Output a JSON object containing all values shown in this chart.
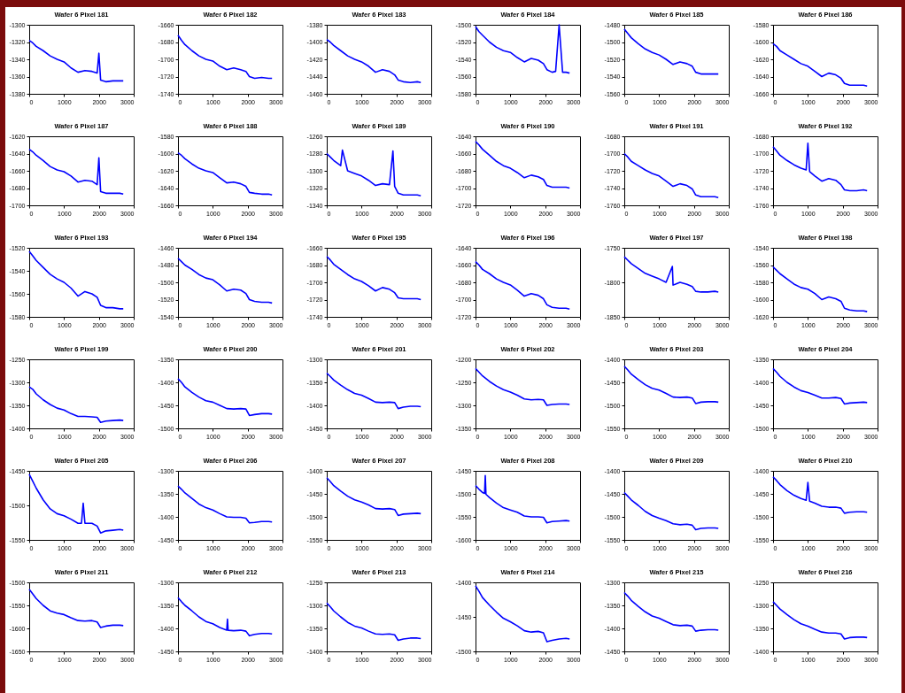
{
  "chart_data": [
    {
      "type": "line",
      "title": "Wafer 6 Pixel 181",
      "x": [
        0,
        100,
        200,
        400,
        600,
        800,
        1000,
        1200,
        1400,
        1600,
        1800,
        1950,
        2000,
        2050,
        2200,
        2400,
        2600,
        2700
      ],
      "series": [
        {
          "color": "#0000ff",
          "values": [
            -1318,
            -1321,
            -1325,
            -1330,
            -1336,
            -1340,
            -1343,
            -1350,
            -1355,
            -1353,
            -1354,
            -1356,
            -1333,
            -1364,
            -1366,
            -1365,
            -1365,
            -1365
          ]
        }
      ],
      "xlim": [
        0,
        3000
      ],
      "xticks": [
        0,
        1000,
        2000,
        3000
      ],
      "ylim": [
        -1380,
        -1300
      ],
      "yticks": [
        -1380,
        -1360,
        -1340,
        -1320,
        -1300
      ]
    },
    {
      "type": "line",
      "title": "Wafer 6 Pixel 182",
      "x": [
        0,
        100,
        200,
        400,
        600,
        800,
        1000,
        1200,
        1400,
        1600,
        1800,
        1950,
        2050,
        2200,
        2400,
        2600,
        2700
      ],
      "series": [
        {
          "color": "#0000ff",
          "values": [
            -1672,
            -1678,
            -1683,
            -1690,
            -1696,
            -1700,
            -1702,
            -1708,
            -1712,
            -1710,
            -1712,
            -1714,
            -1720,
            -1722,
            -1721,
            -1722,
            -1722
          ]
        }
      ],
      "xlim": [
        0,
        3000
      ],
      "xticks": [
        0,
        1000,
        2000,
        3000
      ],
      "ylim": [
        -1740,
        -1660
      ],
      "yticks": [
        -1740,
        -1720,
        -1700,
        -1680,
        -1660
      ]
    },
    {
      "type": "line",
      "title": "Wafer 6 Pixel 183",
      "x": [
        0,
        100,
        200,
        400,
        600,
        800,
        1000,
        1200,
        1400,
        1600,
        1800,
        1950,
        2050,
        2200,
        2400,
        2600,
        2700
      ],
      "series": [
        {
          "color": "#0000ff",
          "values": [
            -1397,
            -1400,
            -1404,
            -1410,
            -1416,
            -1420,
            -1423,
            -1428,
            -1435,
            -1432,
            -1434,
            -1438,
            -1444,
            -1446,
            -1447,
            -1446,
            -1447
          ]
        }
      ],
      "xlim": [
        0,
        3000
      ],
      "xticks": [
        0,
        1000,
        2000,
        3000
      ],
      "ylim": [
        -1460,
        -1380
      ],
      "yticks": [
        -1460,
        -1440,
        -1420,
        -1400,
        -1380
      ]
    },
    {
      "type": "line",
      "title": "Wafer 6 Pixel 184",
      "x": [
        0,
        100,
        200,
        400,
        600,
        800,
        1000,
        1200,
        1400,
        1600,
        1800,
        1950,
        2050,
        2200,
        2300,
        2400,
        2500,
        2600,
        2700
      ],
      "series": [
        {
          "color": "#0000ff",
          "values": [
            -1502,
            -1508,
            -1512,
            -1520,
            -1526,
            -1530,
            -1532,
            -1538,
            -1543,
            -1539,
            -1541,
            -1545,
            -1552,
            -1555,
            -1554,
            -1500,
            -1555,
            -1555,
            -1556
          ]
        }
      ],
      "xlim": [
        0,
        3000
      ],
      "xticks": [
        0,
        1000,
        2000,
        3000
      ],
      "ylim": [
        -1580,
        -1500
      ],
      "yticks": [
        -1580,
        -1560,
        -1540,
        -1520,
        -1500
      ]
    },
    {
      "type": "line",
      "title": "Wafer 6 Pixel 185",
      "x": [
        0,
        100,
        200,
        400,
        600,
        800,
        1000,
        1200,
        1400,
        1600,
        1800,
        1950,
        2050,
        2200,
        2400,
        2600,
        2700
      ],
      "series": [
        {
          "color": "#0000ff",
          "values": [
            -1485,
            -1490,
            -1495,
            -1502,
            -1508,
            -1512,
            -1515,
            -1520,
            -1526,
            -1523,
            -1525,
            -1528,
            -1535,
            -1537,
            -1537,
            -1537,
            -1537
          ]
        }
      ],
      "xlim": [
        0,
        3000
      ],
      "xticks": [
        0,
        1000,
        2000,
        3000
      ],
      "ylim": [
        -1560,
        -1480
      ],
      "yticks": [
        -1560,
        -1540,
        -1520,
        -1500,
        -1480
      ]
    },
    {
      "type": "line",
      "title": "Wafer 6 Pixel 186",
      "x": [
        0,
        100,
        200,
        400,
        600,
        800,
        1000,
        1200,
        1400,
        1600,
        1800,
        1950,
        2050,
        2200,
        2400,
        2600,
        2700
      ],
      "series": [
        {
          "color": "#0000ff",
          "values": [
            -1602,
            -1605,
            -1610,
            -1615,
            -1620,
            -1625,
            -1628,
            -1634,
            -1640,
            -1636,
            -1638,
            -1642,
            -1648,
            -1650,
            -1650,
            -1650,
            -1651
          ]
        }
      ],
      "xlim": [
        0,
        3000
      ],
      "xticks": [
        0,
        1000,
        2000,
        3000
      ],
      "ylim": [
        -1660,
        -1580
      ],
      "yticks": [
        -1660,
        -1640,
        -1620,
        -1600,
        -1580
      ]
    },
    {
      "type": "line",
      "title": "Wafer 6 Pixel 187",
      "x": [
        0,
        100,
        200,
        400,
        600,
        800,
        1000,
        1200,
        1400,
        1600,
        1800,
        1950,
        2000,
        2050,
        2200,
        2400,
        2600,
        2700
      ],
      "series": [
        {
          "color": "#0000ff",
          "values": [
            -1635,
            -1638,
            -1642,
            -1648,
            -1655,
            -1659,
            -1661,
            -1666,
            -1673,
            -1671,
            -1672,
            -1676,
            -1645,
            -1684,
            -1686,
            -1686,
            -1686,
            -1687
          ]
        }
      ],
      "xlim": [
        0,
        3000
      ],
      "xticks": [
        0,
        1000,
        2000,
        3000
      ],
      "ylim": [
        -1700,
        -1620
      ],
      "yticks": [
        -1700,
        -1680,
        -1660,
        -1640,
        -1620
      ]
    },
    {
      "type": "line",
      "title": "Wafer 6 Pixel 188",
      "x": [
        0,
        100,
        200,
        400,
        600,
        800,
        1000,
        1200,
        1400,
        1600,
        1800,
        1950,
        2050,
        2200,
        2400,
        2600,
        2700
      ],
      "series": [
        {
          "color": "#0000ff",
          "values": [
            -1599,
            -1602,
            -1606,
            -1612,
            -1617,
            -1620,
            -1622,
            -1628,
            -1634,
            -1633,
            -1635,
            -1638,
            -1645,
            -1646,
            -1647,
            -1647,
            -1648
          ]
        }
      ],
      "xlim": [
        0,
        3000
      ],
      "xticks": [
        0,
        1000,
        2000,
        3000
      ],
      "ylim": [
        -1660,
        -1580
      ],
      "yticks": [
        -1660,
        -1640,
        -1620,
        -1600,
        -1580
      ]
    },
    {
      "type": "line",
      "title": "Wafer 6 Pixel 189",
      "x": [
        0,
        100,
        200,
        400,
        450,
        600,
        800,
        1000,
        1200,
        1400,
        1600,
        1800,
        1900,
        1950,
        2050,
        2200,
        2400,
        2600,
        2700
      ],
      "series": [
        {
          "color": "#0000ff",
          "values": [
            -1280,
            -1284,
            -1288,
            -1294,
            -1276,
            -1300,
            -1303,
            -1306,
            -1311,
            -1317,
            -1315,
            -1316,
            -1277,
            -1318,
            -1326,
            -1328,
            -1328,
            -1328,
            -1329
          ]
        }
      ],
      "xlim": [
        0,
        3000
      ],
      "xticks": [
        0,
        1000,
        2000,
        3000
      ],
      "ylim": [
        -1340,
        -1260
      ],
      "yticks": [
        -1340,
        -1320,
        -1300,
        -1280,
        -1260
      ]
    },
    {
      "type": "line",
      "title": "Wafer 6 Pixel 190",
      "x": [
        0,
        100,
        200,
        400,
        600,
        800,
        1000,
        1200,
        1400,
        1600,
        1800,
        1950,
        2050,
        2200,
        2400,
        2600,
        2700
      ],
      "series": [
        {
          "color": "#0000ff",
          "values": [
            -1646,
            -1650,
            -1655,
            -1662,
            -1669,
            -1674,
            -1677,
            -1682,
            -1688,
            -1685,
            -1687,
            -1690,
            -1697,
            -1699,
            -1699,
            -1699,
            -1700
          ]
        }
      ],
      "xlim": [
        0,
        3000
      ],
      "xticks": [
        0,
        1000,
        2000,
        3000
      ],
      "ylim": [
        -1720,
        -1640
      ],
      "yticks": [
        -1720,
        -1700,
        -1680,
        -1660,
        -1640
      ]
    },
    {
      "type": "line",
      "title": "Wafer 6 Pixel 191",
      "x": [
        0,
        100,
        200,
        400,
        600,
        800,
        1000,
        1200,
        1400,
        1600,
        1800,
        1950,
        2050,
        2200,
        2400,
        2600,
        2700
      ],
      "series": [
        {
          "color": "#0000ff",
          "values": [
            -1700,
            -1704,
            -1709,
            -1714,
            -1719,
            -1723,
            -1726,
            -1732,
            -1738,
            -1735,
            -1737,
            -1741,
            -1748,
            -1750,
            -1750,
            -1750,
            -1751
          ]
        }
      ],
      "xlim": [
        0,
        3000
      ],
      "xticks": [
        0,
        1000,
        2000,
        3000
      ],
      "ylim": [
        -1760,
        -1680
      ],
      "yticks": [
        -1760,
        -1740,
        -1720,
        -1700,
        -1680
      ]
    },
    {
      "type": "line",
      "title": "Wafer 6 Pixel 192",
      "x": [
        0,
        100,
        200,
        400,
        600,
        800,
        950,
        1000,
        1050,
        1200,
        1400,
        1600,
        1800,
        1950,
        2050,
        2200,
        2400,
        2600,
        2700
      ],
      "series": [
        {
          "color": "#0000ff",
          "values": [
            -1692,
            -1697,
            -1702,
            -1708,
            -1713,
            -1717,
            -1719,
            -1688,
            -1721,
            -1726,
            -1732,
            -1729,
            -1731,
            -1736,
            -1742,
            -1743,
            -1743,
            -1742,
            -1743
          ]
        }
      ],
      "xlim": [
        0,
        3000
      ],
      "xticks": [
        0,
        1000,
        2000,
        3000
      ],
      "ylim": [
        -1760,
        -1680
      ],
      "yticks": [
        -1760,
        -1740,
        -1720,
        -1700,
        -1680
      ]
    },
    {
      "type": "line",
      "title": "Wafer 6 Pixel 193",
      "x": [
        0,
        100,
        200,
        400,
        600,
        800,
        1000,
        1200,
        1400,
        1600,
        1800,
        1950,
        2050,
        2200,
        2400,
        2600,
        2700
      ],
      "series": [
        {
          "color": "#0000ff",
          "values": [
            -1523,
            -1527,
            -1531,
            -1537,
            -1543,
            -1547,
            -1550,
            -1555,
            -1562,
            -1558,
            -1560,
            -1563,
            -1570,
            -1572,
            -1572,
            -1573,
            -1573
          ]
        }
      ],
      "xlim": [
        0,
        3000
      ],
      "xticks": [
        0,
        1000,
        2000,
        3000
      ],
      "ylim": [
        -1580,
        -1520
      ],
      "yticks": [
        -1580,
        -1560,
        -1540,
        -1520
      ]
    },
    {
      "type": "line",
      "title": "Wafer 6 Pixel 194",
      "x": [
        0,
        100,
        200,
        400,
        600,
        800,
        1000,
        1200,
        1400,
        1600,
        1800,
        1950,
        2050,
        2200,
        2400,
        2600,
        2700
      ],
      "series": [
        {
          "color": "#0000ff",
          "values": [
            -1472,
            -1476,
            -1480,
            -1485,
            -1491,
            -1495,
            -1497,
            -1503,
            -1510,
            -1508,
            -1509,
            -1513,
            -1520,
            -1522,
            -1523,
            -1523,
            -1524
          ]
        }
      ],
      "xlim": [
        0,
        3000
      ],
      "xticks": [
        0,
        1000,
        2000,
        3000
      ],
      "ylim": [
        -1540,
        -1460
      ],
      "yticks": [
        -1540,
        -1520,
        -1500,
        -1480,
        -1460
      ]
    },
    {
      "type": "line",
      "title": "Wafer 6 Pixel 195",
      "x": [
        0,
        100,
        200,
        400,
        600,
        800,
        1000,
        1200,
        1400,
        1600,
        1800,
        1950,
        2050,
        2200,
        2400,
        2600,
        2700
      ],
      "series": [
        {
          "color": "#0000ff",
          "values": [
            -1670,
            -1674,
            -1679,
            -1685,
            -1691,
            -1696,
            -1699,
            -1704,
            -1710,
            -1706,
            -1708,
            -1712,
            -1718,
            -1719,
            -1719,
            -1719,
            -1720
          ]
        }
      ],
      "xlim": [
        0,
        3000
      ],
      "xticks": [
        0,
        1000,
        2000,
        3000
      ],
      "ylim": [
        -1740,
        -1660
      ],
      "yticks": [
        -1740,
        -1720,
        -1700,
        -1680,
        -1660
      ]
    },
    {
      "type": "line",
      "title": "Wafer 6 Pixel 196",
      "x": [
        0,
        100,
        200,
        400,
        600,
        800,
        1000,
        1200,
        1400,
        1600,
        1800,
        1950,
        2050,
        2200,
        2400,
        2600,
        2700
      ],
      "series": [
        {
          "color": "#0000ff",
          "values": [
            -1656,
            -1660,
            -1665,
            -1670,
            -1676,
            -1680,
            -1683,
            -1689,
            -1696,
            -1693,
            -1695,
            -1699,
            -1706,
            -1709,
            -1710,
            -1710,
            -1711
          ]
        }
      ],
      "xlim": [
        0,
        3000
      ],
      "xticks": [
        0,
        1000,
        2000,
        3000
      ],
      "ylim": [
        -1720,
        -1640
      ],
      "yticks": [
        -1720,
        -1700,
        -1680,
        -1660,
        -1640
      ]
    },
    {
      "type": "line",
      "title": "Wafer 6 Pixel 197",
      "x": [
        0,
        100,
        200,
        400,
        600,
        800,
        1000,
        1200,
        1380,
        1400,
        1600,
        1800,
        1950,
        2050,
        2200,
        2400,
        2600,
        2700
      ],
      "series": [
        {
          "color": "#0000ff",
          "values": [
            -1763,
            -1768,
            -1773,
            -1780,
            -1787,
            -1791,
            -1795,
            -1800,
            -1777,
            -1804,
            -1800,
            -1803,
            -1806,
            -1813,
            -1814,
            -1814,
            -1813,
            -1814
          ]
        }
      ],
      "xlim": [
        0,
        3000
      ],
      "xticks": [
        0,
        1000,
        2000,
        3000
      ],
      "ylim": [
        -1850,
        -1750
      ],
      "yticks": [
        -1850,
        -1800,
        -1750
      ]
    },
    {
      "type": "line",
      "title": "Wafer 6 Pixel 198",
      "x": [
        0,
        100,
        200,
        400,
        600,
        800,
        1000,
        1200,
        1400,
        1600,
        1800,
        1950,
        2050,
        2200,
        2400,
        2600,
        2700
      ],
      "series": [
        {
          "color": "#0000ff",
          "values": [
            -1562,
            -1566,
            -1570,
            -1576,
            -1582,
            -1586,
            -1588,
            -1593,
            -1600,
            -1597,
            -1599,
            -1602,
            -1610,
            -1612,
            -1613,
            -1613,
            -1614
          ]
        }
      ],
      "xlim": [
        0,
        3000
      ],
      "xticks": [
        0,
        1000,
        2000,
        3000
      ],
      "ylim": [
        -1620,
        -1540
      ],
      "yticks": [
        -1620,
        -1600,
        -1580,
        -1560,
        -1540
      ]
    },
    {
      "type": "line",
      "title": "Wafer 6 Pixel 199",
      "x": [
        0,
        100,
        200,
        400,
        600,
        800,
        1000,
        1200,
        1400,
        1600,
        1800,
        1950,
        2050,
        2200,
        2400,
        2600,
        2700
      ],
      "series": [
        {
          "color": "#0000ff",
          "values": [
            -1310,
            -1315,
            -1325,
            -1338,
            -1348,
            -1356,
            -1360,
            -1368,
            -1374,
            -1374,
            -1375,
            -1376,
            -1387,
            -1384,
            -1383,
            -1382,
            -1383
          ]
        }
      ],
      "xlim": [
        0,
        3000
      ],
      "xticks": [
        0,
        1000,
        2000,
        3000
      ],
      "ylim": [
        -1400,
        -1250
      ],
      "yticks": [
        -1400,
        -1350,
        -1300,
        -1250
      ]
    },
    {
      "type": "line",
      "title": "Wafer 6 Pixel 200",
      "x": [
        0,
        100,
        200,
        400,
        600,
        800,
        1000,
        1200,
        1400,
        1600,
        1800,
        1950,
        2050,
        2200,
        2400,
        2600,
        2700
      ],
      "series": [
        {
          "color": "#0000ff",
          "values": [
            -1392,
            -1400,
            -1410,
            -1422,
            -1432,
            -1440,
            -1443,
            -1450,
            -1457,
            -1458,
            -1457,
            -1458,
            -1472,
            -1470,
            -1468,
            -1468,
            -1469
          ]
        }
      ],
      "xlim": [
        0,
        3000
      ],
      "xticks": [
        0,
        1000,
        2000,
        3000
      ],
      "ylim": [
        -1500,
        -1350
      ],
      "yticks": [
        -1500,
        -1450,
        -1400,
        -1350
      ]
    },
    {
      "type": "line",
      "title": "Wafer 6 Pixel 201",
      "x": [
        0,
        100,
        200,
        400,
        600,
        800,
        1000,
        1200,
        1400,
        1600,
        1800,
        1950,
        2050,
        2200,
        2400,
        2600,
        2700
      ],
      "series": [
        {
          "color": "#0000ff",
          "values": [
            -1330,
            -1337,
            -1345,
            -1356,
            -1366,
            -1374,
            -1378,
            -1385,
            -1393,
            -1394,
            -1393,
            -1394,
            -1407,
            -1404,
            -1402,
            -1402,
            -1403
          ]
        }
      ],
      "xlim": [
        0,
        3000
      ],
      "xticks": [
        0,
        1000,
        2000,
        3000
      ],
      "ylim": [
        -1450,
        -1300
      ],
      "yticks": [
        -1450,
        -1400,
        -1350,
        -1300
      ]
    },
    {
      "type": "line",
      "title": "Wafer 6 Pixel 202",
      "x": [
        0,
        100,
        200,
        400,
        600,
        800,
        1000,
        1200,
        1400,
        1600,
        1800,
        1950,
        2050,
        2200,
        2400,
        2600,
        2700
      ],
      "series": [
        {
          "color": "#0000ff",
          "values": [
            -1220,
            -1228,
            -1236,
            -1248,
            -1258,
            -1266,
            -1271,
            -1278,
            -1286,
            -1288,
            -1287,
            -1288,
            -1300,
            -1298,
            -1297,
            -1297,
            -1298
          ]
        }
      ],
      "xlim": [
        0,
        3000
      ],
      "xticks": [
        0,
        1000,
        2000,
        3000
      ],
      "ylim": [
        -1350,
        -1200
      ],
      "yticks": [
        -1350,
        -1300,
        -1250,
        -1200
      ]
    },
    {
      "type": "line",
      "title": "Wafer 6 Pixel 203",
      "x": [
        0,
        100,
        200,
        400,
        600,
        800,
        1000,
        1200,
        1400,
        1600,
        1800,
        1950,
        2050,
        2200,
        2400,
        2600,
        2700
      ],
      "series": [
        {
          "color": "#0000ff",
          "values": [
            -1415,
            -1423,
            -1432,
            -1444,
            -1455,
            -1463,
            -1467,
            -1474,
            -1482,
            -1483,
            -1482,
            -1484,
            -1496,
            -1493,
            -1492,
            -1492,
            -1493
          ]
        }
      ],
      "xlim": [
        0,
        3000
      ],
      "xticks": [
        0,
        1000,
        2000,
        3000
      ],
      "ylim": [
        -1550,
        -1400
      ],
      "yticks": [
        -1550,
        -1500,
        -1450,
        -1400
      ]
    },
    {
      "type": "line",
      "title": "Wafer 6 Pixel 204",
      "x": [
        0,
        100,
        200,
        400,
        600,
        800,
        1000,
        1200,
        1400,
        1600,
        1800,
        1950,
        2050,
        2200,
        2400,
        2600,
        2700
      ],
      "series": [
        {
          "color": "#0000ff",
          "values": [
            -1370,
            -1378,
            -1387,
            -1400,
            -1410,
            -1418,
            -1422,
            -1428,
            -1434,
            -1434,
            -1433,
            -1435,
            -1447,
            -1445,
            -1444,
            -1443,
            -1444
          ]
        }
      ],
      "xlim": [
        0,
        3000
      ],
      "xticks": [
        0,
        1000,
        2000,
        3000
      ],
      "ylim": [
        -1500,
        -1350
      ],
      "yticks": [
        -1500,
        -1450,
        -1400,
        -1350
      ]
    },
    {
      "type": "line",
      "title": "Wafer 6 Pixel 205",
      "x": [
        0,
        100,
        200,
        400,
        600,
        800,
        1000,
        1200,
        1400,
        1500,
        1550,
        1600,
        1800,
        1950,
        2050,
        2200,
        2400,
        2600,
        2700
      ],
      "series": [
        {
          "color": "#0000ff",
          "values": [
            -1455,
            -1465,
            -1475,
            -1492,
            -1505,
            -1512,
            -1515,
            -1520,
            -1526,
            -1526,
            -1497,
            -1526,
            -1526,
            -1530,
            -1540,
            -1537,
            -1536,
            -1535,
            -1536
          ]
        }
      ],
      "xlim": [
        0,
        3000
      ],
      "xticks": [
        0,
        1000,
        2000,
        3000
      ],
      "ylim": [
        -1550,
        -1450
      ],
      "yticks": [
        -1550,
        -1500,
        -1450
      ]
    },
    {
      "type": "line",
      "title": "Wafer 6 Pixel 206",
      "x": [
        0,
        100,
        200,
        400,
        600,
        800,
        1000,
        1200,
        1400,
        1600,
        1800,
        1950,
        2050,
        2200,
        2400,
        2600,
        2700
      ],
      "series": [
        {
          "color": "#0000ff",
          "values": [
            -1333,
            -1340,
            -1348,
            -1360,
            -1372,
            -1380,
            -1385,
            -1393,
            -1400,
            -1401,
            -1401,
            -1403,
            -1413,
            -1412,
            -1410,
            -1410,
            -1411
          ]
        }
      ],
      "xlim": [
        0,
        3000
      ],
      "xticks": [
        0,
        1000,
        2000,
        3000
      ],
      "ylim": [
        -1450,
        -1300
      ],
      "yticks": [
        -1450,
        -1400,
        -1350,
        -1300
      ]
    },
    {
      "type": "line",
      "title": "Wafer 6 Pixel 207",
      "x": [
        0,
        100,
        200,
        400,
        600,
        800,
        1000,
        1200,
        1400,
        1600,
        1800,
        1950,
        2050,
        2200,
        2400,
        2600,
        2700
      ],
      "series": [
        {
          "color": "#0000ff",
          "values": [
            -1415,
            -1423,
            -1432,
            -1444,
            -1455,
            -1463,
            -1468,
            -1474,
            -1482,
            -1483,
            -1482,
            -1484,
            -1497,
            -1494,
            -1493,
            -1492,
            -1493
          ]
        }
      ],
      "xlim": [
        0,
        3000
      ],
      "xticks": [
        0,
        1000,
        2000,
        3000
      ],
      "ylim": [
        -1550,
        -1400
      ],
      "yticks": [
        -1550,
        -1500,
        -1450,
        -1400
      ]
    },
    {
      "type": "line",
      "title": "Wafer 6 Pixel 208",
      "x": [
        0,
        100,
        200,
        260,
        280,
        300,
        400,
        600,
        800,
        1000,
        1200,
        1400,
        1600,
        1800,
        1950,
        2050,
        2200,
        2400,
        2600,
        2700
      ],
      "series": [
        {
          "color": "#0000ff",
          "values": [
            -1482,
            -1490,
            -1497,
            -1499,
            -1460,
            -1501,
            -1508,
            -1520,
            -1530,
            -1535,
            -1540,
            -1548,
            -1550,
            -1550,
            -1551,
            -1563,
            -1560,
            -1559,
            -1558,
            -1559
          ]
        }
      ],
      "xlim": [
        0,
        3000
      ],
      "xticks": [
        0,
        1000,
        2000,
        3000
      ],
      "ylim": [
        -1600,
        -1450
      ],
      "yticks": [
        -1600,
        -1550,
        -1500,
        -1450
      ]
    },
    {
      "type": "line",
      "title": "Wafer 6 Pixel 209",
      "x": [
        0,
        100,
        200,
        400,
        600,
        800,
        1000,
        1200,
        1400,
        1600,
        1800,
        1950,
        2050,
        2200,
        2400,
        2600,
        2700
      ],
      "series": [
        {
          "color": "#0000ff",
          "values": [
            -1447,
            -1455,
            -1463,
            -1475,
            -1488,
            -1497,
            -1503,
            -1508,
            -1515,
            -1517,
            -1516,
            -1518,
            -1528,
            -1525,
            -1524,
            -1524,
            -1525
          ]
        }
      ],
      "xlim": [
        0,
        3000
      ],
      "xticks": [
        0,
        1000,
        2000,
        3000
      ],
      "ylim": [
        -1550,
        -1400
      ],
      "yticks": [
        -1550,
        -1500,
        -1450,
        -1400
      ]
    },
    {
      "type": "line",
      "title": "Wafer 6 Pixel 210",
      "x": [
        0,
        100,
        200,
        400,
        600,
        800,
        950,
        1000,
        1050,
        1200,
        1400,
        1600,
        1800,
        1950,
        2050,
        2200,
        2400,
        2600,
        2700
      ],
      "series": [
        {
          "color": "#0000ff",
          "values": [
            -1413,
            -1421,
            -1430,
            -1443,
            -1453,
            -1460,
            -1464,
            -1425,
            -1466,
            -1470,
            -1477,
            -1479,
            -1479,
            -1481,
            -1492,
            -1490,
            -1489,
            -1489,
            -1490
          ]
        }
      ],
      "xlim": [
        0,
        3000
      ],
      "xticks": [
        0,
        1000,
        2000,
        3000
      ],
      "ylim": [
        -1550,
        -1400
      ],
      "yticks": [
        -1550,
        -1500,
        -1450,
        -1400
      ]
    },
    {
      "type": "line",
      "title": "Wafer 6 Pixel 211",
      "x": [
        0,
        100,
        200,
        400,
        600,
        800,
        1000,
        1200,
        1400,
        1600,
        1800,
        1950,
        2050,
        2200,
        2400,
        2600,
        2700
      ],
      "series": [
        {
          "color": "#0000ff",
          "values": [
            -1515,
            -1525,
            -1535,
            -1550,
            -1562,
            -1567,
            -1570,
            -1577,
            -1583,
            -1584,
            -1583,
            -1586,
            -1598,
            -1595,
            -1593,
            -1593,
            -1594
          ]
        }
      ],
      "xlim": [
        0,
        3000
      ],
      "xticks": [
        0,
        1000,
        2000,
        3000
      ],
      "ylim": [
        -1650,
        -1500
      ],
      "yticks": [
        -1650,
        -1600,
        -1550,
        -1500
      ]
    },
    {
      "type": "line",
      "title": "Wafer 6 Pixel 212",
      "x": [
        0,
        100,
        200,
        400,
        600,
        800,
        1000,
        1200,
        1400,
        1420,
        1440,
        1600,
        1800,
        1950,
        2050,
        2200,
        2400,
        2600,
        2700
      ],
      "series": [
        {
          "color": "#0000ff",
          "values": [
            -1333,
            -1342,
            -1350,
            -1362,
            -1375,
            -1385,
            -1390,
            -1398,
            -1404,
            -1380,
            -1404,
            -1405,
            -1404,
            -1406,
            -1416,
            -1413,
            -1411,
            -1411,
            -1412
          ]
        }
      ],
      "xlim": [
        0,
        3000
      ],
      "xticks": [
        0,
        1000,
        2000,
        3000
      ],
      "ylim": [
        -1450,
        -1300
      ],
      "yticks": [
        -1450,
        -1400,
        -1350,
        -1300
      ]
    },
    {
      "type": "line",
      "title": "Wafer 6 Pixel 213",
      "x": [
        0,
        100,
        200,
        400,
        600,
        800,
        1000,
        1200,
        1400,
        1600,
        1800,
        1950,
        2050,
        2200,
        2400,
        2600,
        2700
      ],
      "series": [
        {
          "color": "#0000ff",
          "values": [
            -1295,
            -1303,
            -1312,
            -1325,
            -1337,
            -1345,
            -1349,
            -1356,
            -1362,
            -1363,
            -1362,
            -1364,
            -1376,
            -1373,
            -1371,
            -1371,
            -1372
          ]
        }
      ],
      "xlim": [
        0,
        3000
      ],
      "xticks": [
        0,
        1000,
        2000,
        3000
      ],
      "ylim": [
        -1400,
        -1250
      ],
      "yticks": [
        -1400,
        -1350,
        -1300,
        -1250
      ]
    },
    {
      "type": "line",
      "title": "Wafer 6 Pixel 214",
      "x": [
        0,
        100,
        200,
        400,
        600,
        800,
        1000,
        1200,
        1400,
        1600,
        1800,
        1950,
        2050,
        2200,
        2400,
        2600,
        2700
      ],
      "series": [
        {
          "color": "#0000ff",
          "values": [
            -1405,
            -1413,
            -1422,
            -1433,
            -1443,
            -1452,
            -1457,
            -1463,
            -1470,
            -1472,
            -1471,
            -1473,
            -1486,
            -1484,
            -1482,
            -1481,
            -1482
          ]
        }
      ],
      "xlim": [
        0,
        3000
      ],
      "xticks": [
        0,
        1000,
        2000,
        3000
      ],
      "ylim": [
        -1500,
        -1400
      ],
      "yticks": [
        -1500,
        -1450,
        -1400
      ]
    },
    {
      "type": "line",
      "title": "Wafer 6 Pixel 215",
      "x": [
        0,
        100,
        200,
        400,
        600,
        800,
        1000,
        1200,
        1400,
        1600,
        1800,
        1950,
        2050,
        2200,
        2400,
        2600,
        2700
      ],
      "series": [
        {
          "color": "#0000ff",
          "values": [
            -1322,
            -1330,
            -1339,
            -1352,
            -1364,
            -1373,
            -1378,
            -1385,
            -1392,
            -1394,
            -1393,
            -1395,
            -1406,
            -1404,
            -1403,
            -1403,
            -1404
          ]
        }
      ],
      "xlim": [
        0,
        3000
      ],
      "xticks": [
        0,
        1000,
        2000,
        3000
      ],
      "ylim": [
        -1450,
        -1300
      ],
      "yticks": [
        -1450,
        -1400,
        -1350,
        -1300
      ]
    },
    {
      "type": "line",
      "title": "Wafer 6 Pixel 216",
      "x": [
        0,
        100,
        200,
        400,
        600,
        800,
        1000,
        1200,
        1400,
        1600,
        1800,
        1950,
        2050,
        2200,
        2400,
        2600,
        2700
      ],
      "series": [
        {
          "color": "#0000ff",
          "values": [
            -1292,
            -1300,
            -1308,
            -1320,
            -1331,
            -1340,
            -1345,
            -1352,
            -1358,
            -1360,
            -1360,
            -1362,
            -1373,
            -1370,
            -1369,
            -1369,
            -1370
          ]
        }
      ],
      "xlim": [
        0,
        3000
      ],
      "xticks": [
        0,
        1000,
        2000,
        3000
      ],
      "ylim": [
        -1400,
        -1250
      ],
      "yticks": [
        -1400,
        -1350,
        -1300,
        -1250
      ]
    }
  ]
}
